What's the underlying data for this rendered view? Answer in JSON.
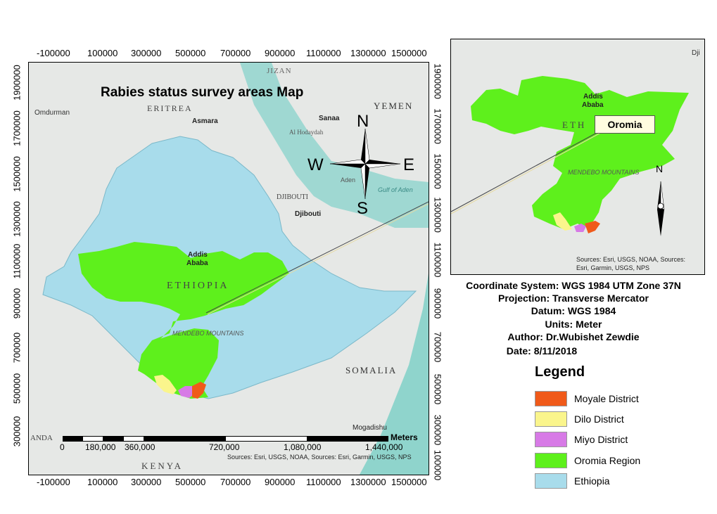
{
  "main_map": {
    "title": "Rabies status survey areas Map",
    "x_ticks": [
      "-100000",
      "100000",
      "300000",
      "500000",
      "700000",
      "900000",
      "1100000",
      "1300000",
      "1500000"
    ],
    "y_ticks_left": [
      "1900000",
      "1700000",
      "1500000",
      "1300000",
      "1100000",
      "900000",
      "700000",
      "500000",
      "300000"
    ],
    "y_ticks_right": [
      "1900000",
      "1700000",
      "1500000",
      "1300000",
      "1100000",
      "900000",
      "700000",
      "500000",
      "300000",
      "100000"
    ],
    "place_labels": {
      "eritrea": "ERITREA",
      "yemen": "YEMEN",
      "jizan": "JIZAN",
      "asmara": "Asmara",
      "sanaa": "Sanaa",
      "hodaydah": "Al Hodaydah",
      "omdurman": "Omdurman",
      "djibouti_country": "DJIBOUTI",
      "djibouti_city": "Djibouti",
      "aden": "Aden",
      "gulf_aden": "Gulf of Aden",
      "addis": "Addis",
      "ababa": "Ababa",
      "ethiopia": "ETHIOPIA",
      "mendebo": "MENDEBO MOUNTAINS",
      "somalia": "SOMALIA",
      "kenya": "KENYA",
      "mogadishu": "Mogadishu",
      "anda": "ANDA"
    },
    "compass": {
      "n": "N",
      "s": "S",
      "e": "E",
      "w": "W"
    },
    "scale_bar": {
      "labels": [
        "0",
        "180,000",
        "360,000",
        "720,000",
        "1,080,000",
        "1,440,000"
      ],
      "unit": "Meters"
    },
    "sources": "Sources: Esri, USGS, NOAA, Sources: Esri, Garmin, USGS, NPS"
  },
  "inset_map": {
    "callout": "Oromia",
    "addis": "Addis",
    "ababa": "Ababa",
    "eth": "ETH",
    "mendebo": "MENDEBO MOUNTAINS",
    "dji": "Dji",
    "north": "N",
    "sources_line1": "Sources: Esri, USGS, NOAA, Sources:",
    "sources_line2": "Esri, Garmin, USGS, NPS"
  },
  "info": {
    "coord_system": "Coordinate System: WGS 1984 UTM Zone 37N",
    "projection": "Projection: Transverse Mercator",
    "datum": "Datum: WGS 1984",
    "units": "Units: Meter",
    "author": "Author: Dr.Wubishet Zewdie",
    "date": "Date: 8/11/2018"
  },
  "legend": {
    "title": "Legend",
    "items": [
      {
        "label": "Moyale District",
        "color": "#f05a1a"
      },
      {
        "label": "Dilo District",
        "color": "#faf58c"
      },
      {
        "label": "Miyo District",
        "color": "#d77ae6"
      },
      {
        "label": "Oromia Region",
        "color": "#5ef01c"
      },
      {
        "label": "Ethiopia",
        "color": "#a8dceb"
      }
    ]
  },
  "colors": {
    "ethiopia": "#a8dceb",
    "oromia": "#5ef01c",
    "moyale": "#f05a1a",
    "dilo": "#faf58c",
    "miyo": "#d77ae6",
    "sea": "#9fd8d2",
    "land": "#e6e8e6"
  }
}
